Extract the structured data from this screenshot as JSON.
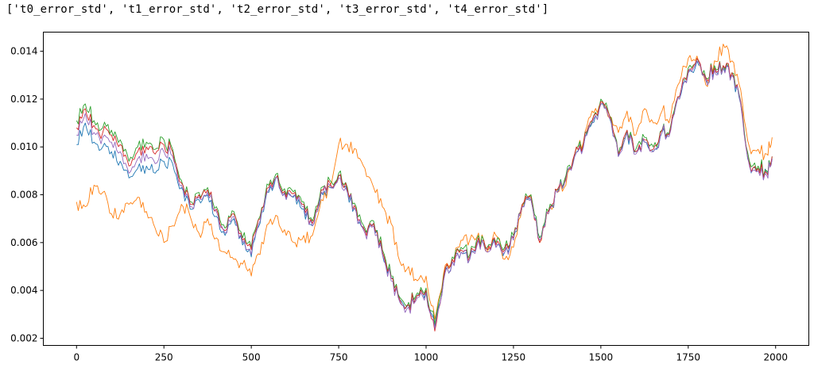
{
  "output": {
    "text": "['t0_error_std', 't1_error_std', 't2_error_std', 't3_error_std', 't4_error_std']"
  },
  "chart_data": {
    "type": "line",
    "title": "",
    "xlabel": "",
    "ylabel": "",
    "xlim": [
      -95,
      2095
    ],
    "ylim": [
      0.0017,
      0.0148
    ],
    "x_ticks": [
      "0",
      "250",
      "500",
      "750",
      "1000",
      "1250",
      "1500",
      "1750",
      "2000"
    ],
    "y_ticks": [
      "0.002",
      "0.004",
      "0.006",
      "0.008",
      "0.010",
      "0.012",
      "0.014"
    ],
    "grid": false,
    "legend": "none",
    "x": [
      0,
      25,
      50,
      75,
      100,
      125,
      150,
      175,
      200,
      225,
      250,
      275,
      300,
      325,
      350,
      375,
      400,
      425,
      450,
      475,
      500,
      525,
      550,
      575,
      600,
      625,
      650,
      675,
      700,
      725,
      750,
      775,
      800,
      825,
      850,
      875,
      900,
      925,
      950,
      975,
      1000,
      1025,
      1050,
      1075,
      1100,
      1125,
      1150,
      1175,
      1200,
      1225,
      1250,
      1275,
      1300,
      1325,
      1350,
      1375,
      1400,
      1425,
      1450,
      1475,
      1500,
      1525,
      1550,
      1575,
      1600,
      1625,
      1650,
      1675,
      1700,
      1725,
      1750,
      1775,
      1800,
      1825,
      1850,
      1875,
      1900,
      1925,
      1950,
      1975,
      1990
    ],
    "series": [
      {
        "color": "#1f77b4",
        "values": [
          0.0101,
          0.011,
          0.0102,
          0.01,
          0.0098,
          0.0094,
          0.0087,
          0.0091,
          0.0092,
          0.0089,
          0.0094,
          0.0093,
          0.0083,
          0.0074,
          0.0078,
          0.008,
          0.0071,
          0.0063,
          0.007,
          0.0059,
          0.0054,
          0.0068,
          0.0081,
          0.0087,
          0.0078,
          0.008,
          0.0074,
          0.0067,
          0.0081,
          0.0083,
          0.0088,
          0.0081,
          0.0073,
          0.0065,
          0.0068,
          0.0055,
          0.0045,
          0.0036,
          0.0034,
          0.0038,
          0.004,
          0.0025,
          0.0044,
          0.0052,
          0.0056,
          0.0053,
          0.0061,
          0.0057,
          0.0058,
          0.0056,
          0.0062,
          0.0075,
          0.0078,
          0.0062,
          0.0073,
          0.0081,
          0.0087,
          0.0096,
          0.01,
          0.011,
          0.0118,
          0.0112,
          0.0096,
          0.0106,
          0.0098,
          0.0102,
          0.0098,
          0.0106,
          0.0108,
          0.012,
          0.0131,
          0.0136,
          0.0128,
          0.0133,
          0.0133,
          0.013,
          0.0118,
          0.0093,
          0.0091,
          0.0089,
          0.0095
        ]
      },
      {
        "color": "#ff7f0e",
        "values": [
          0.0077,
          0.0075,
          0.0084,
          0.0081,
          0.0072,
          0.0072,
          0.0076,
          0.0079,
          0.0073,
          0.0066,
          0.006,
          0.0067,
          0.0076,
          0.0071,
          0.0064,
          0.007,
          0.0062,
          0.0056,
          0.0053,
          0.0051,
          0.0046,
          0.0055,
          0.0068,
          0.0071,
          0.0063,
          0.006,
          0.0063,
          0.0063,
          0.0078,
          0.0084,
          0.0101,
          0.0101,
          0.0099,
          0.0091,
          0.0083,
          0.0075,
          0.0068,
          0.0052,
          0.005,
          0.0044,
          0.0046,
          0.0028,
          0.0047,
          0.0053,
          0.0061,
          0.0061,
          0.0064,
          0.0056,
          0.0063,
          0.0053,
          0.0058,
          0.0075,
          0.008,
          0.006,
          0.0072,
          0.0081,
          0.0084,
          0.0097,
          0.0102,
          0.0115,
          0.0118,
          0.0112,
          0.0106,
          0.0115,
          0.0105,
          0.0116,
          0.011,
          0.0115,
          0.0113,
          0.0127,
          0.0137,
          0.0138,
          0.0126,
          0.0136,
          0.0143,
          0.0136,
          0.0124,
          0.01,
          0.0099,
          0.0097,
          0.0104
        ]
      },
      {
        "color": "#2ca02c",
        "values": [
          0.0111,
          0.0118,
          0.0111,
          0.0108,
          0.0107,
          0.0103,
          0.0094,
          0.01,
          0.0102,
          0.0099,
          0.0103,
          0.0099,
          0.0086,
          0.0077,
          0.0081,
          0.0083,
          0.0075,
          0.0066,
          0.0073,
          0.0062,
          0.0058,
          0.0071,
          0.0084,
          0.0089,
          0.008,
          0.0082,
          0.0077,
          0.0069,
          0.0083,
          0.0086,
          0.0089,
          0.0083,
          0.0075,
          0.0066,
          0.0069,
          0.0057,
          0.0046,
          0.0037,
          0.0035,
          0.0039,
          0.0041,
          0.0026,
          0.0046,
          0.0054,
          0.0058,
          0.0055,
          0.0063,
          0.0058,
          0.006,
          0.0058,
          0.0063,
          0.0076,
          0.008,
          0.0062,
          0.0073,
          0.0082,
          0.0088,
          0.0097,
          0.0101,
          0.0111,
          0.012,
          0.0113,
          0.0097,
          0.0107,
          0.0099,
          0.0104,
          0.01,
          0.0107,
          0.0109,
          0.0121,
          0.0133,
          0.0137,
          0.0129,
          0.0134,
          0.0134,
          0.0131,
          0.0119,
          0.0094,
          0.0092,
          0.009,
          0.0096
        ]
      },
      {
        "color": "#d62728",
        "values": [
          0.0108,
          0.0116,
          0.0109,
          0.0106,
          0.0105,
          0.0101,
          0.0092,
          0.0098,
          0.01,
          0.0097,
          0.0101,
          0.0098,
          0.0085,
          0.0076,
          0.008,
          0.0082,
          0.0074,
          0.0065,
          0.0072,
          0.0061,
          0.0057,
          0.007,
          0.0083,
          0.0088,
          0.0079,
          0.0081,
          0.0076,
          0.0068,
          0.0082,
          0.0085,
          0.0088,
          0.0082,
          0.0074,
          0.0065,
          0.0068,
          0.0056,
          0.0045,
          0.0036,
          0.0034,
          0.0038,
          0.004,
          0.0023,
          0.0045,
          0.0053,
          0.0057,
          0.0054,
          0.0062,
          0.0057,
          0.0059,
          0.0057,
          0.0062,
          0.0076,
          0.0079,
          0.006,
          0.0073,
          0.0082,
          0.0087,
          0.0097,
          0.0101,
          0.0111,
          0.0119,
          0.0113,
          0.0097,
          0.0107,
          0.0098,
          0.0103,
          0.0099,
          0.0107,
          0.0108,
          0.0121,
          0.0132,
          0.0137,
          0.0129,
          0.0133,
          0.0134,
          0.0131,
          0.0119,
          0.0093,
          0.0091,
          0.0089,
          0.0096
        ]
      },
      {
        "color": "#9467bd",
        "values": [
          0.0105,
          0.0114,
          0.0106,
          0.0104,
          0.0102,
          0.0098,
          0.0089,
          0.0095,
          0.0097,
          0.0093,
          0.0098,
          0.0096,
          0.0084,
          0.0075,
          0.0079,
          0.0081,
          0.0073,
          0.0064,
          0.0071,
          0.006,
          0.0055,
          0.0069,
          0.0082,
          0.0087,
          0.0078,
          0.008,
          0.0075,
          0.0067,
          0.0081,
          0.0084,
          0.0087,
          0.0081,
          0.0073,
          0.0064,
          0.0067,
          0.0055,
          0.0044,
          0.0035,
          0.0033,
          0.0037,
          0.0039,
          0.0024,
          0.0044,
          0.0052,
          0.0056,
          0.0053,
          0.0061,
          0.0056,
          0.0058,
          0.0056,
          0.0061,
          0.0075,
          0.0078,
          0.0061,
          0.0072,
          0.0081,
          0.0086,
          0.0096,
          0.01,
          0.011,
          0.0118,
          0.0112,
          0.0096,
          0.0106,
          0.0097,
          0.0102,
          0.0098,
          0.0106,
          0.0107,
          0.012,
          0.0131,
          0.0136,
          0.0128,
          0.0132,
          0.0133,
          0.013,
          0.0118,
          0.0092,
          0.009,
          0.0088,
          0.0095
        ]
      }
    ]
  }
}
